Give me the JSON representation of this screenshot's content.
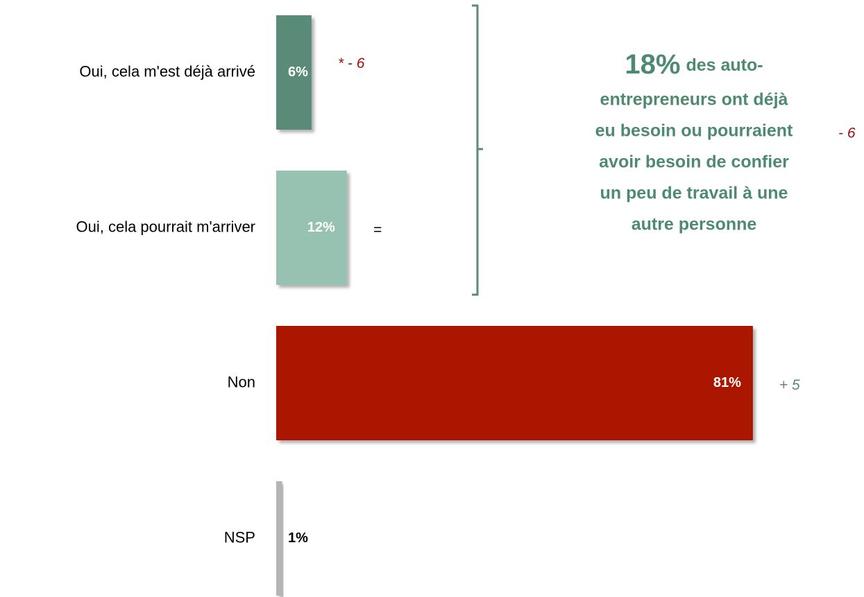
{
  "chart_data": {
    "type": "bar",
    "orientation": "horizontal",
    "categories": [
      "Oui, cela m'est déjà arrivé",
      "Oui, cela pourrait m'arriver",
      "Non",
      "NSP"
    ],
    "values": [
      6,
      12,
      81,
      1
    ],
    "value_labels": [
      "6%",
      "12%",
      "81%",
      "1%"
    ],
    "colors": [
      "#5a8a78",
      "#97c1b1",
      "#ab1500",
      "#b5b5b5"
    ],
    "label_colors": [
      "#ffffff",
      "#ffffff",
      "#ffffff",
      "#000000"
    ],
    "changes": [
      "* - 6",
      "=",
      "+ 5",
      null
    ],
    "change_colors": [
      "#a01010",
      "#000000",
      "#5a8a78",
      null
    ],
    "xlim": [
      0,
      100
    ],
    "annotation": {
      "highlight": "18%",
      "lines": [
        "des auto-",
        "entrepreneurs ont déjà",
        "eu besoin ou pourraient",
        "avoir besoin de confier",
        "un peu de travail à une",
        "autre personne"
      ],
      "color": "#4e8a72",
      "change": "- 6",
      "change_color": "#a01010"
    }
  }
}
